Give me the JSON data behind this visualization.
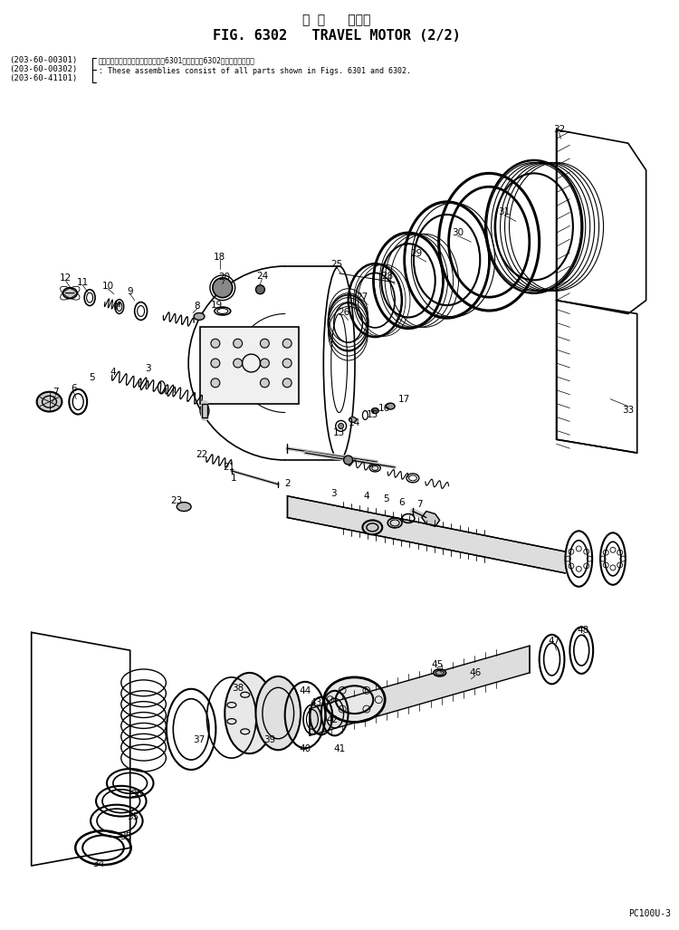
{
  "title_japanese": "走 行   モータ",
  "title_english": "FIG. 6302   TRAVEL MOTOR (2/2)",
  "model_number": "PC100U-3",
  "background_color": "#ffffff",
  "line_color": "#000000"
}
